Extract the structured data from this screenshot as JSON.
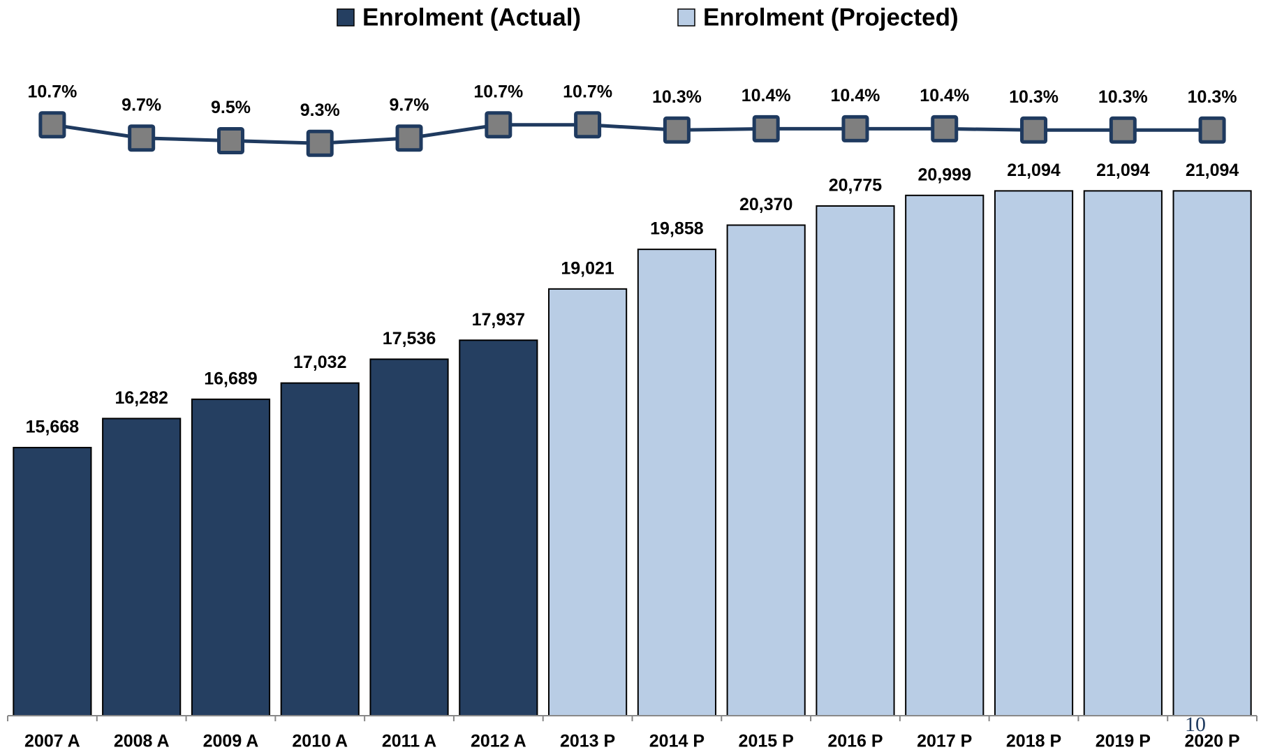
{
  "chart_data": [
    {
      "type": "bar",
      "categories": [
        "2007 A",
        "2008 A",
        "2009 A",
        "2010 A",
        "2011 A",
        "2012 A",
        "2013 P",
        "2014 P",
        "2015 P",
        "2016 P",
        "2017 P",
        "2018 P",
        "2019 P",
        "2020 P"
      ],
      "series": [
        {
          "name": "Enrolment (Actual)",
          "color": "#253f61",
          "values": [
            15668,
            16282,
            16689,
            17032,
            17536,
            17937,
            null,
            null,
            null,
            null,
            null,
            null,
            null,
            null
          ],
          "value_labels": [
            "15,668",
            "16,282",
            "16,689",
            "17,032",
            "17,536",
            "17,937",
            null,
            null,
            null,
            null,
            null,
            null,
            null,
            null
          ]
        },
        {
          "name": "Enrolment (Projected)",
          "color": "#b9cde5",
          "values": [
            null,
            null,
            null,
            null,
            null,
            null,
            19021,
            19858,
            20370,
            20775,
            20999,
            21094,
            21094,
            21094
          ],
          "value_labels": [
            null,
            null,
            null,
            null,
            null,
            null,
            "19,021",
            "19,858",
            "20,370",
            "20,775",
            "20,999",
            "21,094",
            "21,094",
            "21,094"
          ]
        }
      ],
      "ylim": [
        10000,
        22000
      ]
    },
    {
      "type": "line",
      "values": [
        10.7,
        9.7,
        9.5,
        9.3,
        9.7,
        10.7,
        10.7,
        10.3,
        10.4,
        10.4,
        10.4,
        10.3,
        10.3,
        10.3
      ],
      "value_labels": [
        "10.7%",
        "9.7%",
        "9.5%",
        "9.3%",
        "9.7%",
        "10.7%",
        "10.7%",
        "10.3%",
        "10.4%",
        "10.4%",
        "10.4%",
        "10.3%",
        "10.3%",
        "10.3%"
      ],
      "color": "#1f3a5f",
      "marker_color": "#7f7f7f",
      "ylim": [
        8,
        12
      ]
    }
  ],
  "page_number": "10"
}
